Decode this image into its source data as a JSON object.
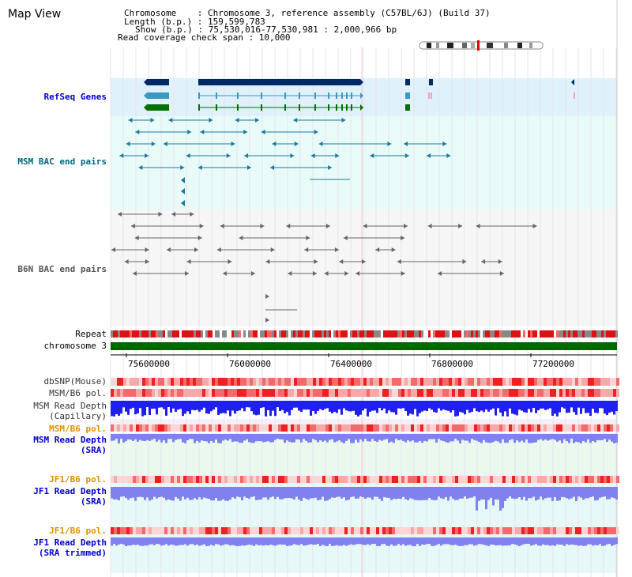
{
  "view": {
    "title": "Map View"
  },
  "header": {
    "chromosome_label": "Chromosome    : Chromosome 3, reference assembly (C57BL/6J) (Build 37)",
    "length_label": "Length (b.p.) : 159,599,783",
    "show_label": "Show (b.p.) : 75,530,016-77,530,981 : 2,000,966 bp",
    "coverage_label": "Read coverage check span : 10,000"
  },
  "tracks": {
    "refseq_label": "RefSeq Genes",
    "msm_bac_label": "MSM BAC end pairs",
    "b6n_bac_label": "B6N BAC end pairs",
    "repeat_label": "Repeat",
    "chromosome_label": "chromosome 3",
    "dbsnp_label": "dbSNP(Mouse)",
    "msm_pol_label": "MSM/B6 pol.",
    "msm_cap_label_1": "MSM Read Depth",
    "msm_cap_label_2": "(Capillary)",
    "msm_pol2_label": "MSM/B6 pol.",
    "msm_sra_label_1": "MSM Read Depth",
    "msm_sra_label_2": "(SRA)",
    "jf1_pol_label": "JF1/B6 pol.",
    "jf1_sra_label_1": "JF1 Read Depth",
    "jf1_sra_label_2": "(SRA)",
    "jf1_pol2_label": "JF1/B6 pol.",
    "jf1_trim_label_1": "JF1 Read Depth",
    "jf1_trim_label_2": "(SRA trimmed)"
  },
  "axis": {
    "ticks": [
      "75600000",
      "76000000",
      "76400000",
      "76800000",
      "77200000"
    ]
  },
  "colors": {
    "refseq_bg": "#dff1fb",
    "msm_bac_bg": "#e9fbf8",
    "b6n_bac_bg": "#f6f6f6",
    "chromosome": "#006600",
    "gene_dark": "#002a66",
    "gene_mid": "#3a98c4",
    "gene_green": "#007000",
    "bac_teal": "#1a7a9a",
    "bac_gray": "#666666",
    "depth_blue": "#2020ee",
    "depth_light": "#8080ee"
  }
}
